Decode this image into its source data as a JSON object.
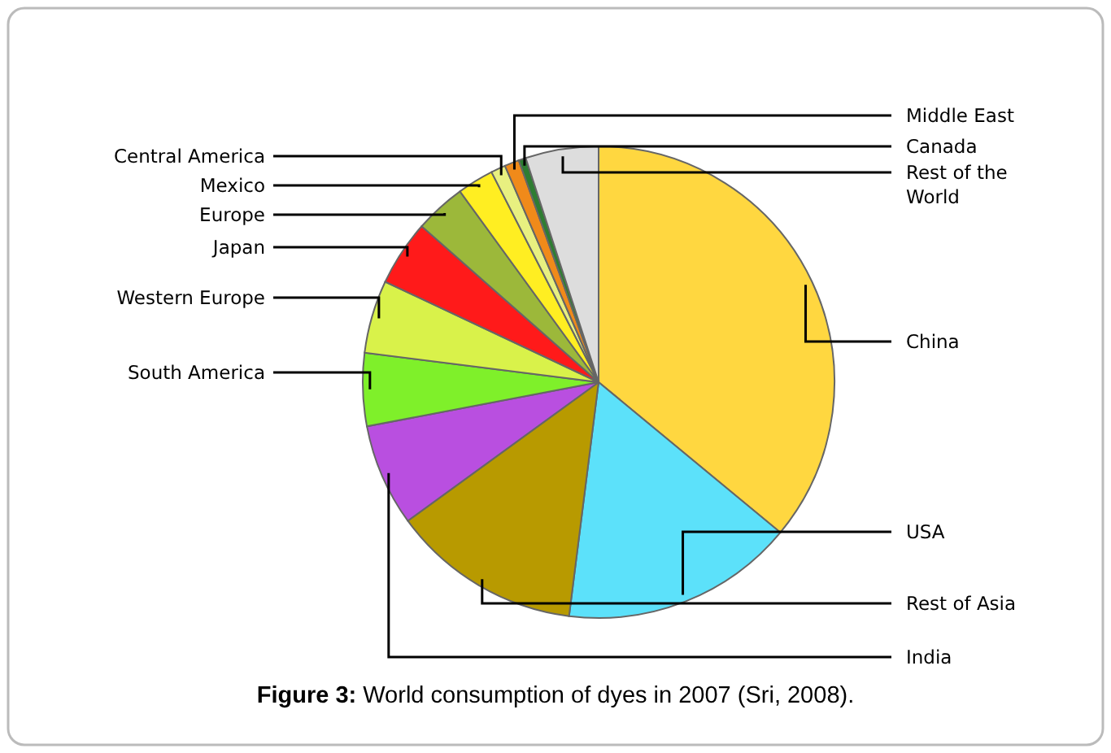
{
  "chart_data": {
    "type": "pie",
    "title": "Figure 3: World consumption of dyes in 2007 (Sri, 2008).",
    "categories": [
      "China",
      "USA",
      "Rest of Asia",
      "India",
      "South America",
      "Western Europe",
      "Japan",
      "Europe",
      "Mexico",
      "Central America",
      "Middle East",
      "Canada",
      "Rest of the World"
    ],
    "values": [
      36,
      16,
      13,
      7,
      5,
      5,
      4.5,
      3.5,
      2.5,
      1,
      1,
      0.5,
      5
    ],
    "colors": [
      "#ffd740",
      "#5ce1fa",
      "#b89a00",
      "#b94fe0",
      "#7ff02a",
      "#d9f24a",
      "#ff1a1a",
      "#9cb83a",
      "#ffee22",
      "#e8f080",
      "#f08a1a",
      "#2e7d32",
      "#dddddd"
    ],
    "legend": false
  }
}
